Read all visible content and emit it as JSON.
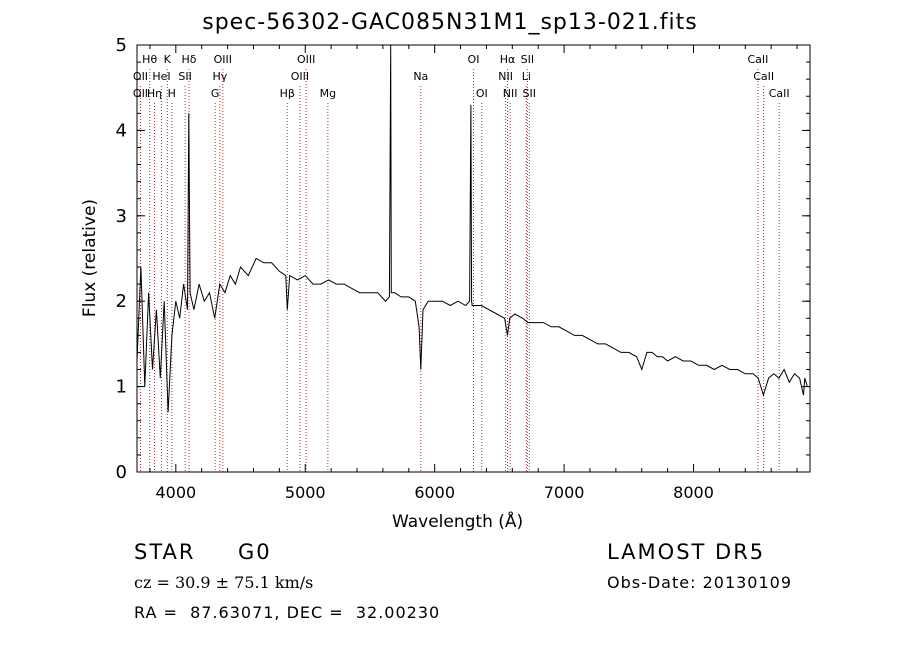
{
  "title": "spec-56302-GAC085N31M1_sp13-021.fits",
  "chart_data": {
    "type": "line",
    "xlabel": "Wavelength (Å)",
    "ylabel": "Flux (relative)",
    "xlim": [
      3700,
      8900
    ],
    "ylim": [
      0,
      5
    ],
    "x_ticks": [
      4000,
      5000,
      6000,
      7000,
      8000
    ],
    "y_ticks": [
      0,
      1,
      2,
      3,
      4,
      5
    ],
    "grid": false,
    "series": [
      {
        "x": [
          3700,
          3730,
          3760,
          3790,
          3820,
          3850,
          3880,
          3910,
          3940,
          3970,
          4000,
          4030,
          4060,
          4090,
          4100,
          4110,
          4140,
          4180,
          4220,
          4260,
          4300,
          4340,
          4380,
          4420,
          4460,
          4500,
          4560,
          4620,
          4680,
          4740,
          4800,
          4850,
          4861,
          4880,
          4940,
          5000,
          5060,
          5120,
          5180,
          5240,
          5300,
          5360,
          5420,
          5500,
          5560,
          5620,
          5650,
          5660,
          5665,
          5670,
          5690,
          5740,
          5800,
          5850,
          5880,
          5893,
          5910,
          5950,
          6000,
          6060,
          6120,
          6180,
          6240,
          6270,
          6280,
          6285,
          6290,
          6310,
          6360,
          6420,
          6480,
          6540,
          6563,
          6580,
          6620,
          6680,
          6720,
          6780,
          6840,
          6900,
          6960,
          7020,
          7080,
          7140,
          7200,
          7260,
          7320,
          7380,
          7440,
          7500,
          7560,
          7600,
          7640,
          7680,
          7720,
          7760,
          7800,
          7860,
          7920,
          7980,
          8040,
          8100,
          8160,
          8220,
          8280,
          8340,
          8400,
          8460,
          8500,
          8540,
          8580,
          8620,
          8660,
          8700,
          8740,
          8780,
          8820,
          8850,
          8860,
          8880
        ],
        "y": [
          1.3,
          2.4,
          1.0,
          2.1,
          1.2,
          1.9,
          1.1,
          2.0,
          0.7,
          1.6,
          2.0,
          1.8,
          2.2,
          1.9,
          4.2,
          2.1,
          1.9,
          2.2,
          2.0,
          2.1,
          1.8,
          2.2,
          2.1,
          2.3,
          2.2,
          2.4,
          2.3,
          2.5,
          2.45,
          2.45,
          2.35,
          2.3,
          1.9,
          2.3,
          2.25,
          2.3,
          2.2,
          2.2,
          2.25,
          2.2,
          2.2,
          2.15,
          2.1,
          2.1,
          2.1,
          2.0,
          2.05,
          5.0,
          2.1,
          2.1,
          2.1,
          2.05,
          2.05,
          2.0,
          1.7,
          1.2,
          1.9,
          2.0,
          2.0,
          2.0,
          1.95,
          2.0,
          1.95,
          2.0,
          4.3,
          2.0,
          1.95,
          1.95,
          1.95,
          1.9,
          1.85,
          1.8,
          1.6,
          1.8,
          1.85,
          1.8,
          1.75,
          1.75,
          1.75,
          1.7,
          1.7,
          1.65,
          1.6,
          1.6,
          1.55,
          1.5,
          1.5,
          1.45,
          1.4,
          1.4,
          1.35,
          1.2,
          1.4,
          1.4,
          1.35,
          1.35,
          1.3,
          1.35,
          1.3,
          1.3,
          1.25,
          1.25,
          1.2,
          1.25,
          1.2,
          1.2,
          1.15,
          1.15,
          1.1,
          0.9,
          1.1,
          1.15,
          1.1,
          1.2,
          1.05,
          1.15,
          1.1,
          0.9,
          1.1,
          1.0
        ]
      }
    ],
    "line_markers": [
      {
        "label": "Hθ",
        "x": 3798,
        "row": 0
      },
      {
        "label": "K",
        "x": 3934,
        "row": 0
      },
      {
        "label": "Hδ",
        "x": 4102,
        "row": 0
      },
      {
        "label": "OIII",
        "x": 4363,
        "row": 0
      },
      {
        "label": "OIII",
        "x": 5007,
        "row": 0
      },
      {
        "label": "OI",
        "x": 6300,
        "row": 0
      },
      {
        "label": "Hα",
        "x": 6563,
        "row": 0
      },
      {
        "label": "SII",
        "x": 6716,
        "row": 0
      },
      {
        "label": "CaII",
        "x": 8498,
        "row": 0
      },
      {
        "label": "OII",
        "x": 3727,
        "row": 1
      },
      {
        "label": "HeI",
        "x": 3889,
        "row": 1
      },
      {
        "label": "SII",
        "x": 4072,
        "row": 1
      },
      {
        "label": "Hγ",
        "x": 4340,
        "row": 1
      },
      {
        "label": "OIII",
        "x": 4959,
        "row": 1
      },
      {
        "label": "Na",
        "x": 5893,
        "row": 1
      },
      {
        "label": "NII",
        "x": 6548,
        "row": 1
      },
      {
        "label": "Li",
        "x": 6708,
        "row": 1
      },
      {
        "label": "CaII",
        "x": 8542,
        "row": 1
      },
      {
        "label": "OII",
        "x": 3727,
        "row": 2
      },
      {
        "label": "Hη",
        "x": 3835,
        "row": 2
      },
      {
        "label": "H",
        "x": 3969,
        "row": 2
      },
      {
        "label": "G",
        "x": 4304,
        "row": 2
      },
      {
        "label": "Hβ",
        "x": 4861,
        "row": 2
      },
      {
        "label": "Mg",
        "x": 5175,
        "row": 2
      },
      {
        "label": "OI",
        "x": 6364,
        "row": 2
      },
      {
        "label": "NII",
        "x": 6583,
        "row": 2
      },
      {
        "label": "SII",
        "x": 6731,
        "row": 2
      },
      {
        "label": "CaII",
        "x": 8662,
        "row": 2
      }
    ]
  },
  "info": {
    "class_label": "STAR",
    "subclass": "G0",
    "survey": "LAMOST DR5",
    "cz": "cz = 30.9 ± 75.1 km/s",
    "obs_date": "Obs-Date: 20130109",
    "radec": "RA =  87.63071, DEC =  32.00230"
  },
  "colors": {
    "spectrum": "#000000",
    "marker_line": "#b03030",
    "axis": "#000000"
  }
}
